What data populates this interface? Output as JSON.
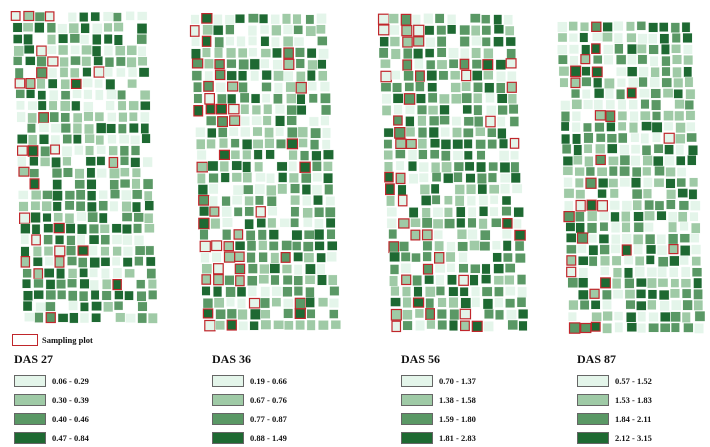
{
  "sampling_plot_label": "Sampling plot",
  "colors": [
    "#e4f5ea",
    "#9fcaa6",
    "#5a9865",
    "#1e6932"
  ],
  "sampling_border_color": "#c0262b",
  "panels": [
    {
      "title": "DAS 27",
      "ranges": [
        "0.06 - 0.29",
        "0.30 - 0.39",
        "0.40 - 0.46",
        "0.47 - 0.84"
      ]
    },
    {
      "title": "DAS 36",
      "ranges": [
        "0.19 - 0.66",
        "0.67 - 0.76",
        "0.77 - 0.87",
        "0.88 - 1.49"
      ]
    },
    {
      "title": "DAS 56",
      "ranges": [
        "0.70 - 1.37",
        "1.38 - 1.58",
        "1.59 - 1.80",
        "1.81 - 2.83"
      ]
    },
    {
      "title": "DAS 87",
      "ranges": [
        "0.57 - 1.52",
        "1.53 - 1.83",
        "1.84 - 2.11",
        "2.12 - 3.15"
      ]
    }
  ]
}
